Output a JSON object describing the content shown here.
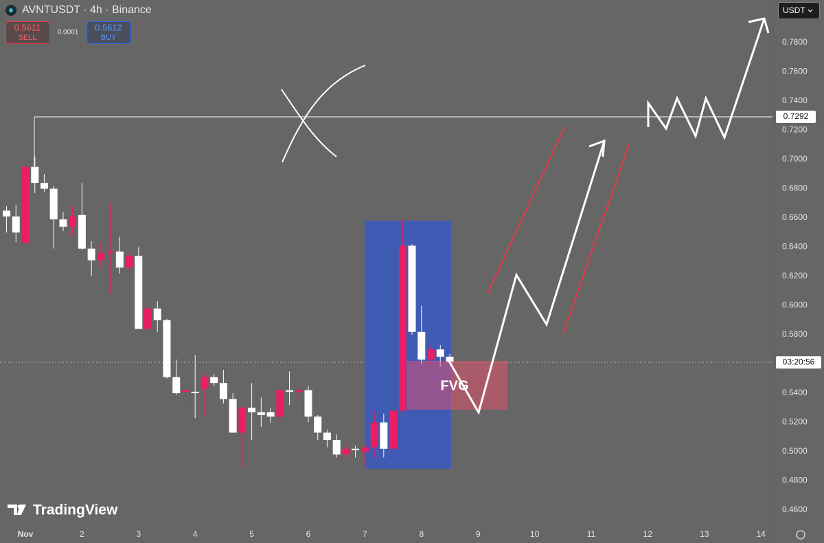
{
  "header": {
    "symbol": "AVNTUSDT · 4h · Binance",
    "sell_price": 0.5611,
    "sell": "SELL",
    "spread": 0.0001,
    "buy_price": 0.5612,
    "buy": "BUY",
    "currency": "USDT",
    "countdown": "03:20:56",
    "brand": "TradingView"
  },
  "chart_data": {
    "type": "candlestick",
    "up_color": "#e91e63",
    "down_color": "#ffffff",
    "x": [
      0.667,
      0.833,
      1,
      1.167,
      1.333,
      1.5,
      1.667,
      1.833,
      2,
      2.167,
      2.333,
      2.5,
      2.667,
      2.833,
      3,
      3.167,
      3.333,
      3.5,
      3.667,
      3.833,
      4,
      4.167,
      4.333,
      4.5,
      4.667,
      4.833,
      5,
      5.167,
      5.333,
      5.5,
      5.667,
      5.833,
      6,
      6.167,
      6.333,
      6.5,
      6.667,
      6.833,
      7,
      7.167,
      7.333,
      7.5,
      7.667,
      7.833,
      8,
      8.167,
      8.333,
      8.5
    ],
    "open": [
      0.665,
      0.661,
      0.643,
      0.695,
      0.684,
      0.68,
      0.659,
      0.654,
      0.662,
      0.639,
      0.631,
      0.636,
      0.637,
      0.626,
      0.634,
      0.584,
      0.598,
      0.59,
      0.551,
      0.541,
      0.541,
      0.543,
      0.551,
      0.547,
      0.536,
      0.513,
      0.53,
      0.527,
      0.527,
      0.524,
      0.542,
      0.541,
      0.542,
      0.524,
      0.513,
      0.508,
      0.498,
      0.502,
      0.5,
      0.503,
      0.52,
      0.502,
      0.528,
      0.641,
      0.582,
      0.563,
      0.57,
      0.565
    ],
    "high": [
      0.668,
      0.669,
      0.7,
      0.702,
      0.69,
      0.682,
      0.664,
      0.668,
      0.684,
      0.644,
      0.643,
      0.67,
      0.647,
      0.637,
      0.64,
      0.602,
      0.603,
      0.591,
      0.563,
      0.549,
      0.566,
      0.553,
      0.553,
      0.556,
      0.54,
      0.531,
      0.547,
      0.537,
      0.53,
      0.543,
      0.555,
      0.543,
      0.545,
      0.525,
      0.515,
      0.512,
      0.506,
      0.504,
      0.505,
      0.528,
      0.526,
      0.528,
      0.659,
      0.642,
      0.6,
      0.573,
      0.573,
      0.567
    ],
    "low": [
      0.65,
      0.6435,
      0.64,
      0.677,
      0.678,
      0.639,
      0.651,
      0.648,
      0.638,
      0.62,
      0.627,
      0.608,
      0.622,
      0.622,
      0.584,
      0.582,
      0.582,
      0.55,
      0.539,
      0.527,
      0.523,
      0.524,
      0.545,
      0.533,
      0.513,
      0.49,
      0.508,
      0.517,
      0.52,
      0.52,
      0.532,
      0.536,
      0.52,
      0.508,
      0.503,
      0.496,
      0.495,
      0.496,
      0.49,
      0.496,
      0.496,
      0.495,
      0.527,
      0.58,
      0.56,
      0.559,
      0.558,
      0.56
    ],
    "close": [
      0.661,
      0.65,
      0.695,
      0.684,
      0.68,
      0.659,
      0.654,
      0.661,
      0.639,
      0.631,
      0.636,
      0.637,
      0.626,
      0.634,
      0.584,
      0.598,
      0.59,
      0.551,
      0.54,
      0.542,
      0.54,
      0.551,
      0.547,
      0.536,
      0.513,
      0.53,
      0.527,
      0.525,
      0.524,
      0.542,
      0.541,
      0.542,
      0.524,
      0.513,
      0.508,
      0.498,
      0.502,
      0.501,
      0.503,
      0.52,
      0.502,
      0.528,
      0.641,
      0.582,
      0.563,
      0.57,
      0.565,
      0.5611
    ],
    "xlim": [
      0.551,
      14.204
    ],
    "xticks": [
      {
        "value": 1,
        "label": "Nov"
      },
      2,
      3,
      4,
      5,
      6,
      7,
      8,
      9,
      10,
      11,
      12,
      13,
      14
    ],
    "ylim": [
      0.4478,
      0.8092
    ],
    "yticks": [
      {
        "value": 0.46,
        "label": "0.4600"
      },
      {
        "value": 0.48,
        "label": "0.4800"
      },
      {
        "value": 0.5,
        "label": "0.5000"
      },
      {
        "value": 0.52,
        "label": "0.5200"
      },
      {
        "value": 0.54,
        "label": "0.5400"
      },
      {
        "value": 0.56,
        "label": "0.5600"
      },
      {
        "value": 0.58,
        "label": "0.5800"
      },
      {
        "value": 0.6,
        "label": "0.6000"
      },
      {
        "value": 0.62,
        "label": "0.6200"
      },
      {
        "value": 0.64,
        "label": "0.6400"
      },
      {
        "value": 0.66,
        "label": "0.6600"
      },
      {
        "value": 0.68,
        "label": "0.6800"
      },
      {
        "value": 0.7,
        "label": "0.7000"
      },
      {
        "value": 0.72,
        "label": "0.7200"
      },
      {
        "value": 0.74,
        "label": "0.7400"
      },
      {
        "value": 0.76,
        "label": "0.7600"
      },
      {
        "value": 0.78,
        "label": "0.7800"
      }
    ],
    "level": 0.7292,
    "zone_label": "FVG"
  }
}
